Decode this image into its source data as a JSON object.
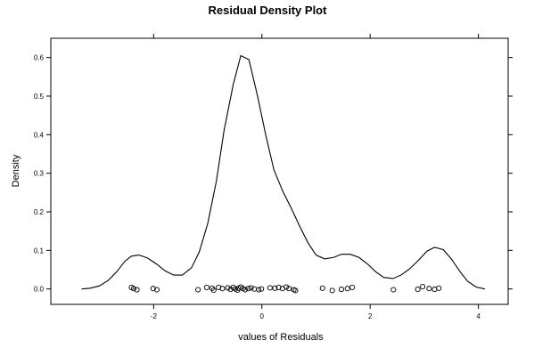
{
  "chart_data": {
    "type": "line",
    "title": "Residual Density Plot",
    "xlabel": "values of Residuals",
    "ylabel": "Density",
    "xlim": [
      -3.9,
      4.55
    ],
    "ylim": [
      -0.04,
      0.65
    ],
    "x_ticks": [
      -2,
      0,
      2,
      4
    ],
    "x_tick_labels": [
      "-2",
      "0",
      "2",
      "4"
    ],
    "y_ticks": [
      0.0,
      0.1,
      0.2,
      0.3,
      0.4,
      0.5,
      0.6
    ],
    "y_tick_labels": [
      "0.0",
      "0.1",
      "0.2",
      "0.3",
      "0.4",
      "0.5",
      "0.6"
    ],
    "grid": false,
    "series": [
      {
        "kind": "density-line",
        "points": [
          [
            -3.33,
            0.0
          ],
          [
            -3.17,
            0.002
          ],
          [
            -3.0,
            0.008
          ],
          [
            -2.84,
            0.022
          ],
          [
            -2.68,
            0.045
          ],
          [
            -2.53,
            0.072
          ],
          [
            -2.41,
            0.085
          ],
          [
            -2.27,
            0.088
          ],
          [
            -2.11,
            0.08
          ],
          [
            -1.95,
            0.065
          ],
          [
            -1.79,
            0.047
          ],
          [
            -1.63,
            0.036
          ],
          [
            -1.47,
            0.036
          ],
          [
            -1.3,
            0.055
          ],
          [
            -1.16,
            0.095
          ],
          [
            -1.0,
            0.17
          ],
          [
            -0.84,
            0.28
          ],
          [
            -0.7,
            0.41
          ],
          [
            -0.53,
            0.53
          ],
          [
            -0.39,
            0.605
          ],
          [
            -0.24,
            0.595
          ],
          [
            -0.08,
            0.5
          ],
          [
            0.07,
            0.4
          ],
          [
            0.22,
            0.31
          ],
          [
            0.38,
            0.255
          ],
          [
            0.54,
            0.21
          ],
          [
            0.69,
            0.165
          ],
          [
            0.85,
            0.12
          ],
          [
            1.0,
            0.088
          ],
          [
            1.16,
            0.078
          ],
          [
            1.33,
            0.082
          ],
          [
            1.47,
            0.09
          ],
          [
            1.63,
            0.09
          ],
          [
            1.79,
            0.082
          ],
          [
            1.95,
            0.065
          ],
          [
            2.1,
            0.045
          ],
          [
            2.25,
            0.03
          ],
          [
            2.42,
            0.027
          ],
          [
            2.57,
            0.036
          ],
          [
            2.73,
            0.052
          ],
          [
            2.89,
            0.074
          ],
          [
            3.05,
            0.098
          ],
          [
            3.19,
            0.108
          ],
          [
            3.35,
            0.102
          ],
          [
            3.5,
            0.078
          ],
          [
            3.66,
            0.045
          ],
          [
            3.8,
            0.02
          ],
          [
            3.96,
            0.005
          ],
          [
            4.12,
            0.0
          ]
        ]
      },
      {
        "kind": "rug-points",
        "points": [
          [
            -2.41,
            0.004
          ],
          [
            -2.37,
            0.001
          ],
          [
            -2.31,
            -0.002
          ],
          [
            -2.01,
            0.001
          ],
          [
            -1.94,
            -0.002
          ],
          [
            -1.18,
            -0.002
          ],
          [
            -1.02,
            0.004
          ],
          [
            -0.92,
            0.002
          ],
          [
            -0.89,
            -0.003
          ],
          [
            -0.8,
            0.004
          ],
          [
            -0.73,
            0.001
          ],
          [
            -0.63,
            0.003
          ],
          [
            -0.58,
            -0.001
          ],
          [
            -0.53,
            0.004
          ],
          [
            -0.49,
            0.0
          ],
          [
            -0.45,
            -0.003
          ],
          [
            -0.43,
            0.002
          ],
          [
            -0.39,
            0.005
          ],
          [
            -0.35,
            0.001
          ],
          [
            -0.31,
            -0.002
          ],
          [
            -0.25,
            0.001
          ],
          [
            -0.2,
            0.003
          ],
          [
            -0.14,
            0.0
          ],
          [
            -0.06,
            -0.002
          ],
          [
            -0.01,
            0.0
          ],
          [
            0.15,
            0.003
          ],
          [
            0.24,
            0.002
          ],
          [
            0.31,
            0.004
          ],
          [
            0.38,
            0.001
          ],
          [
            0.45,
            0.005
          ],
          [
            0.5,
            0.001
          ],
          [
            0.59,
            -0.002
          ],
          [
            0.62,
            -0.004
          ],
          [
            1.12,
            0.002
          ],
          [
            1.3,
            -0.004
          ],
          [
            1.47,
            -0.001
          ],
          [
            1.58,
            0.001
          ],
          [
            1.67,
            0.004
          ],
          [
            2.43,
            -0.002
          ],
          [
            2.88,
            -0.001
          ],
          [
            2.97,
            0.006
          ],
          [
            3.09,
            0.001
          ],
          [
            3.19,
            -0.001
          ],
          [
            3.27,
            0.002
          ]
        ]
      }
    ]
  }
}
